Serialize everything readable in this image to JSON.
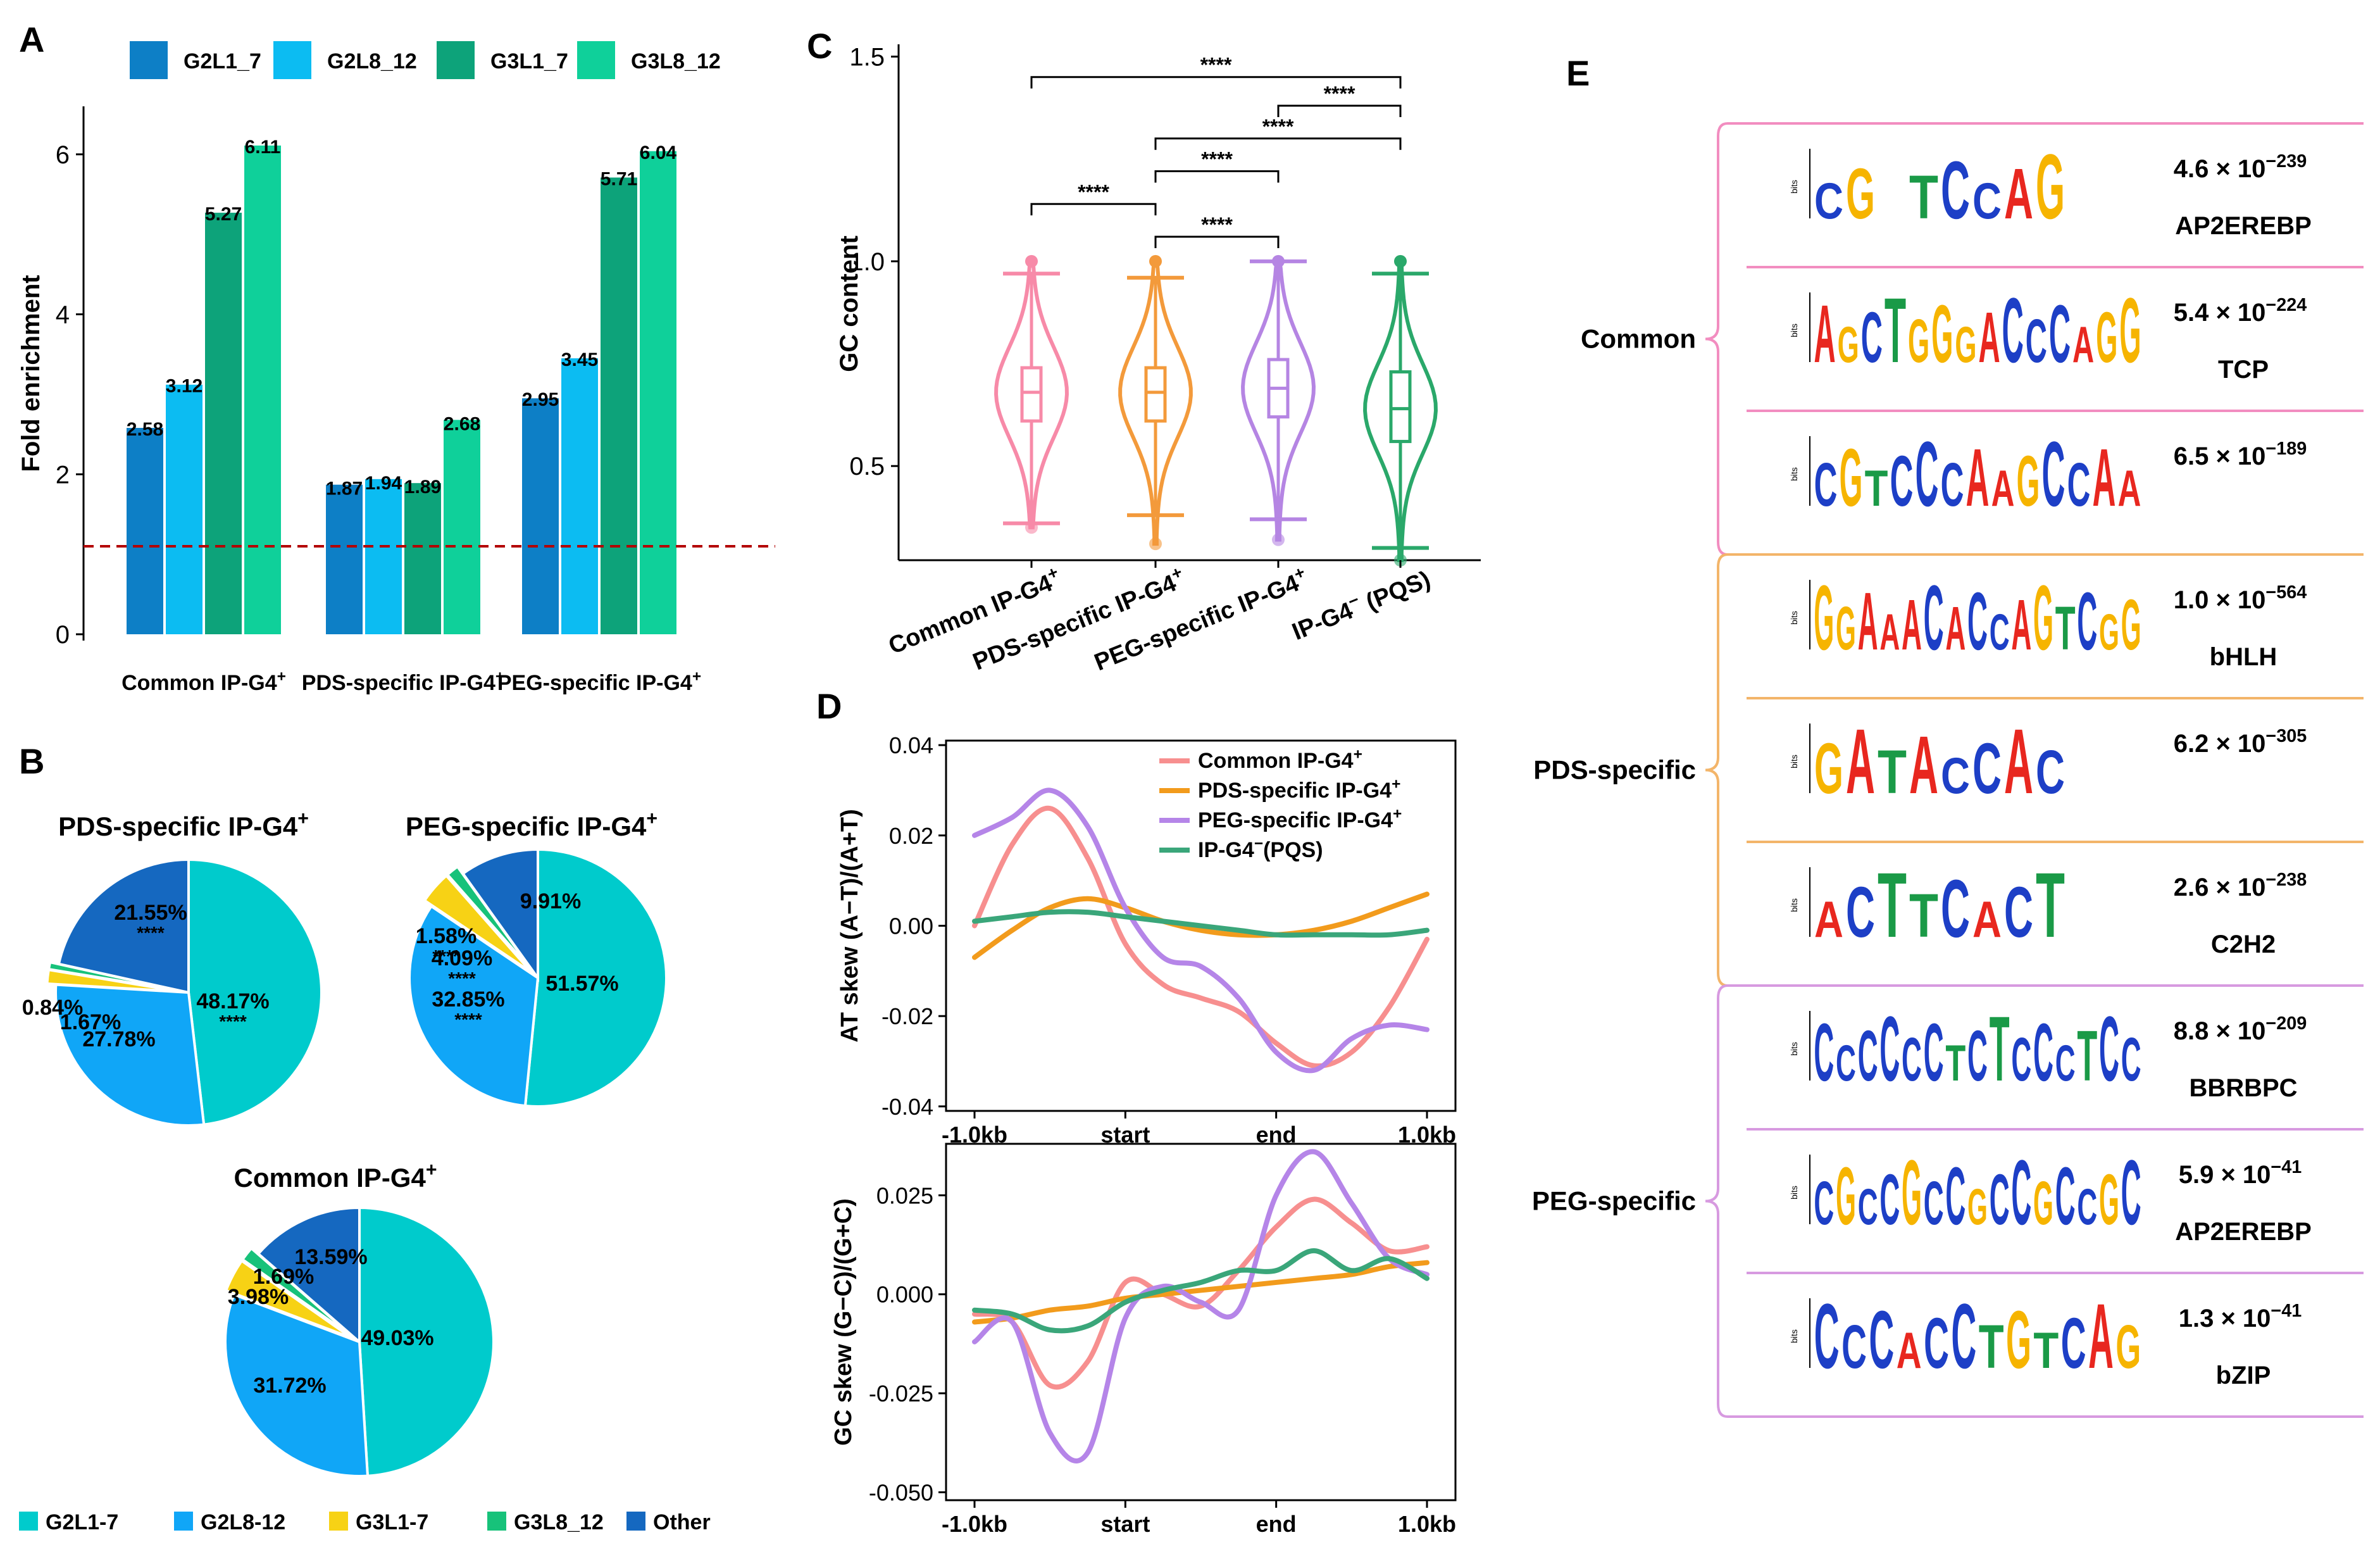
{
  "panel_letters": [
    "A",
    "B",
    "C",
    "D",
    "E"
  ],
  "chart_data": [
    {
      "type": "bar",
      "panel": "A",
      "ylabel": "Fold enrichment",
      "xlabel": "",
      "ylim": [
        0,
        6.6
      ],
      "yticks": [
        0,
        2,
        4,
        6
      ],
      "reference_line": 1.1,
      "categories": [
        {
          "name": "Common IP-G4",
          "sup": "+"
        },
        {
          "name": "PDS-specific IP-G4",
          "sup": "+"
        },
        {
          "name": "PEG-specific IP-G4",
          "sup": "+"
        }
      ],
      "series": [
        {
          "name": "G2L1_7",
          "color": "#0d7fc6",
          "values": [
            2.58,
            1.87,
            2.95
          ]
        },
        {
          "name": "G2L8_12",
          "color": "#0cbcf2",
          "values": [
            3.12,
            1.94,
            3.45
          ]
        },
        {
          "name": "G3L1_7",
          "color": "#0da37a",
          "values": [
            5.27,
            1.89,
            5.71
          ]
        },
        {
          "name": "G3L8_12",
          "color": "#0fd09a",
          "values": [
            6.11,
            2.68,
            6.04
          ]
        }
      ],
      "value_labels": [
        [
          "2.58",
          "3.12",
          "5.27",
          "6.11"
        ],
        [
          "1.87",
          "1.94",
          "1.89",
          "2.68"
        ],
        [
          "2.95",
          "3.45",
          "5.71",
          "6.04"
        ]
      ]
    },
    {
      "type": "pie",
      "panel": "B",
      "legend": [
        {
          "name": "G2L1-7",
          "color": "#00cbcc"
        },
        {
          "name": "G2L8-12",
          "color": "#10a6f7"
        },
        {
          "name": "G3L1-7",
          "color": "#f7d215"
        },
        {
          "name": "G3L8_12",
          "color": "#17c27a"
        },
        {
          "name": "Other",
          "color": "#1568c0"
        }
      ],
      "pies": [
        {
          "title": "PDS-specific IP-G4",
          "sup": "+",
          "values": [
            48.17,
            27.78,
            1.67,
            0.84,
            21.55
          ],
          "labels": [
            "48.17%",
            "27.78%",
            "1.67%",
            "0.84%",
            "21.55%"
          ],
          "stars": [
            "****",
            "",
            "",
            "",
            "****"
          ]
        },
        {
          "title": "PEG-specific IP-G4",
          "sup": "+",
          "values": [
            51.57,
            32.85,
            4.09,
            1.58,
            9.91
          ],
          "labels": [
            "51.57%",
            "32.85%",
            "4.09%",
            "1.58%",
            "9.91%"
          ],
          "stars": [
            "",
            "****",
            "****",
            "****",
            ""
          ]
        },
        {
          "title": "Common IP-G4",
          "sup": "+",
          "values": [
            49.03,
            31.72,
            3.98,
            1.69,
            13.59
          ],
          "labels": [
            "49.03%",
            "31.72%",
            "3.98%",
            "1.69%",
            "13.59%"
          ],
          "stars": [
            "",
            "",
            "",
            "",
            ""
          ]
        }
      ]
    },
    {
      "type": "violin",
      "panel": "C",
      "ylabel": "GC content",
      "ylim": [
        0.27,
        1.53
      ],
      "yticks": [
        "0.5",
        "1.0",
        "1.5"
      ],
      "groups": [
        {
          "name": "Common IP-G4",
          "sup": "+",
          "color": "#f78aa8",
          "min": 0.36,
          "q1": 0.61,
          "median": 0.68,
          "q3": 0.74,
          "max": 0.97,
          "outlier_max": 1.0,
          "outlier_min": 0.35
        },
        {
          "name": "PDS-specific IP-G4",
          "sup": "+",
          "color": "#f39a3b",
          "min": 0.38,
          "q1": 0.61,
          "median": 0.68,
          "q3": 0.74,
          "max": 0.96,
          "outlier_max": 1.0,
          "outlier_min": 0.31
        },
        {
          "name": "PEG-specific IP-G4",
          "sup": "+",
          "color": "#b585e3",
          "min": 0.37,
          "q1": 0.62,
          "median": 0.69,
          "q3": 0.76,
          "max": 1.0,
          "outlier_max": 1.0,
          "outlier_min": 0.32
        },
        {
          "name": "IP-G4",
          "sup": "−",
          "suffix": " (PQS)",
          "color": "#2aa86a",
          "min": 0.3,
          "q1": 0.56,
          "median": 0.64,
          "q3": 0.73,
          "max": 0.97,
          "outlier_max": 1.0,
          "outlier_min": 0.27
        }
      ],
      "significance": [
        {
          "a": 0,
          "b": 3,
          "level": 1.45,
          "label": "****"
        },
        {
          "a": 2,
          "b": 3,
          "level": 1.38,
          "label": "****"
        },
        {
          "a": 1,
          "b": 3,
          "level": 1.3,
          "label": "****"
        },
        {
          "a": 1,
          "b": 2,
          "level": 1.22,
          "label": "****"
        },
        {
          "a": 0,
          "b": 1,
          "level": 1.14,
          "label": "****"
        },
        {
          "a": 1,
          "b": 2,
          "level": 1.06,
          "label": "****"
        }
      ]
    },
    {
      "type": "line",
      "panel": "D",
      "x_ticks": [
        "-1.0kb",
        "start",
        "end",
        "1.0kb"
      ],
      "series_meta": [
        {
          "name": "Common IP-G4",
          "sup": "+",
          "color": "#f78f8f"
        },
        {
          "name": "PDS-specific IP-G4",
          "sup": "+",
          "color": "#f29b1c"
        },
        {
          "name": "PEG-specific IP-G4",
          "sup": "+",
          "color": "#b585e8"
        },
        {
          "name": "IP-G4",
          "sup": "−",
          "suffix": "(PQS)",
          "color": "#3aa67a"
        }
      ],
      "subplots": [
        {
          "ylabel": "AT skew (A−T)/(A+T)",
          "ylim": [
            -0.041,
            0.041
          ],
          "yticks": [
            "0.04",
            "0.02",
            "0.00",
            "-0.02",
            "-0.04"
          ],
          "ytick_values": [
            0.04,
            0.02,
            0.0,
            -0.02,
            -0.04
          ],
          "x": [
            0,
            0.25,
            0.5,
            0.75,
            1.0,
            1.25,
            1.5,
            1.75,
            2.0,
            2.25,
            2.5,
            2.75,
            3.0
          ],
          "series": [
            [
              0.0,
              0.018,
              0.026,
              0.015,
              -0.004,
              -0.013,
              -0.016,
              -0.019,
              -0.026,
              -0.031,
              -0.028,
              -0.018,
              -0.003
            ],
            [
              -0.007,
              -0.001,
              0.004,
              0.006,
              0.004,
              0.001,
              -0.001,
              -0.002,
              -0.002,
              -0.001,
              0.001,
              0.004,
              0.007
            ],
            [
              0.02,
              0.024,
              0.03,
              0.022,
              0.004,
              -0.007,
              -0.009,
              -0.016,
              -0.028,
              -0.032,
              -0.025,
              -0.022,
              -0.023
            ],
            [
              0.001,
              0.002,
              0.003,
              0.003,
              0.002,
              0.001,
              0.0,
              -0.001,
              -0.002,
              -0.002,
              -0.002,
              -0.002,
              -0.001
            ]
          ]
        },
        {
          "ylabel": "GC skew (G−C)/(G+C)",
          "ylim": [
            -0.052,
            0.038
          ],
          "yticks": [
            "0.025",
            "0.000",
            "-0.025",
            "-0.050"
          ],
          "ytick_values": [
            0.025,
            0.0,
            -0.025,
            -0.05
          ],
          "x": [
            0,
            0.25,
            0.5,
            0.75,
            1.0,
            1.25,
            1.5,
            1.75,
            2.0,
            2.25,
            2.5,
            2.75,
            3.0
          ],
          "series": [
            [
              -0.005,
              -0.007,
              -0.023,
              -0.017,
              0.003,
              0.0,
              -0.003,
              0.006,
              0.017,
              0.024,
              0.018,
              0.011,
              0.012
            ],
            [
              -0.007,
              -0.006,
              -0.004,
              -0.003,
              -0.001,
              0.0,
              0.001,
              0.002,
              0.003,
              0.004,
              0.005,
              0.007,
              0.008
            ],
            [
              -0.012,
              -0.007,
              -0.035,
              -0.04,
              -0.006,
              0.002,
              -0.002,
              -0.004,
              0.025,
              0.036,
              0.023,
              0.009,
              0.005
            ],
            [
              -0.004,
              -0.005,
              -0.009,
              -0.008,
              -0.002,
              0.001,
              0.003,
              0.006,
              0.006,
              0.011,
              0.006,
              0.009,
              0.004
            ]
          ]
        }
      ]
    },
    {
      "type": "table",
      "panel": "E",
      "groups": [
        {
          "name": "Common",
          "color": "#f28dc0"
        },
        {
          "name": "PDS-specific",
          "color": "#f3b56a"
        },
        {
          "name": "PEG-specific",
          "color": "#d79ae0"
        }
      ],
      "motifs": [
        {
          "group": 0,
          "seq": "CG.TCCAG",
          "exp_base": "4.6 × 10",
          "exp": "−239",
          "family": "AP2EREBP"
        },
        {
          "group": 0,
          "seq": "AGCTGGGACCCAGG",
          "exp_base": "5.4 × 10",
          "exp": "−224",
          "family": "TCP"
        },
        {
          "group": 0,
          "seq": "CGTCCCAAGCCAA",
          "exp_base": "6.5 × 10",
          "exp": "−189",
          "family": ""
        },
        {
          "group": 1,
          "seq": "GGAAACACCAGTCGG",
          "exp_base": "1.0 × 10",
          "exp": "−564",
          "family": "bHLH"
        },
        {
          "group": 1,
          "seq": "GATACCAC",
          "exp_base": "6.2 × 10",
          "exp": "−305",
          "family": ""
        },
        {
          "group": 1,
          "seq": "ACTTCACT",
          "exp_base": "2.6 × 10",
          "exp": "−238",
          "family": "C2H2"
        },
        {
          "group": 2,
          "seq": "CCCCCCTCTCCCTCC",
          "exp_base": "8.8 × 10",
          "exp": "−209",
          "family": "BBRBPC"
        },
        {
          "group": 2,
          "seq": "CGCCGCCGCCGCCGC",
          "exp_base": "5.9 × 10",
          "exp": "−41",
          "family": "AP2EREBP"
        },
        {
          "group": 2,
          "seq": "CCCACCTGTCAG",
          "exp_base": "1.3 × 10",
          "exp": "−41",
          "family": "bZIP"
        }
      ]
    }
  ]
}
